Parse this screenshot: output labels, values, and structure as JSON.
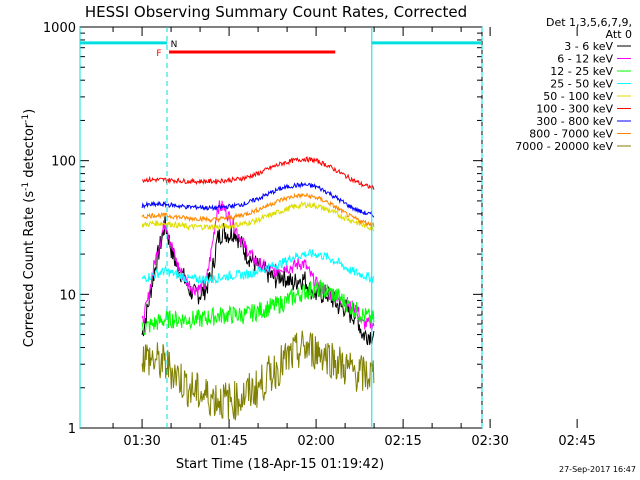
{
  "chart_data": {
    "type": "line",
    "title": "HESSI Observing Summary Count Rates, Corrected",
    "xlabel": "Start Time (18-Apr-15 01:19:42)",
    "ylabel_parts": [
      "Corrected Count Rate (s",
      "-1",
      " detector",
      "-1",
      ")"
    ],
    "yscale": "log",
    "ylim": [
      1,
      1000
    ],
    "yticks": [
      "1",
      "10",
      "100",
      "1000"
    ],
    "xlim_minutes_after_0130": [
      -10.7,
      58.6
    ],
    "xticks": [
      "01:30",
      "01:45",
      "02:00",
      "02:15",
      "02:30",
      "02:45"
    ],
    "legend_header": [
      "Det 1,3,5,6,7,9,",
      "Att 0"
    ],
    "timestamp": "27-Sep-2017 16:47",
    "flags": {
      "N_label": "N",
      "F_label": "F",
      "night_intervals": [
        [
          -10.7,
          4.3
        ],
        [
          39.6,
          58.6
        ]
      ],
      "flare_interval": [
        4.3,
        33.3
      ],
      "flare_level": 650,
      "night_level": 760
    },
    "series": [
      {
        "name": "3 - 6 keV",
        "color": "#000000",
        "points": [
          [
            0,
            5
          ],
          [
            1,
            8
          ],
          [
            2,
            14
          ],
          [
            3,
            22
          ],
          [
            4,
            34
          ],
          [
            5,
            22
          ],
          [
            6,
            16
          ],
          [
            7,
            14
          ],
          [
            8,
            11
          ],
          [
            9,
            10
          ],
          [
            10,
            10
          ],
          [
            11,
            11
          ],
          [
            12,
            14
          ],
          [
            13,
            26
          ],
          [
            14,
            30
          ],
          [
            15,
            28
          ],
          [
            16,
            30
          ],
          [
            17,
            24
          ],
          [
            18,
            20
          ],
          [
            19,
            18
          ],
          [
            20,
            16
          ],
          [
            21,
            15
          ],
          [
            22,
            14
          ],
          [
            23,
            13
          ],
          [
            24,
            14
          ],
          [
            25,
            13
          ],
          [
            26,
            12
          ],
          [
            27,
            13
          ],
          [
            28,
            13
          ],
          [
            29,
            11
          ],
          [
            30,
            10
          ],
          [
            31,
            10
          ],
          [
            32,
            10
          ],
          [
            33,
            9
          ],
          [
            34,
            8
          ],
          [
            35,
            8
          ],
          [
            36,
            7
          ],
          [
            37,
            7
          ],
          [
            38,
            5
          ],
          [
            39,
            5
          ],
          [
            40,
            5
          ]
        ]
      },
      {
        "name": "6 - 12 keV",
        "color": "#ff00ff",
        "points": [
          [
            0,
            6
          ],
          [
            1,
            9
          ],
          [
            2,
            16
          ],
          [
            3,
            24
          ],
          [
            4,
            36
          ],
          [
            5,
            24
          ],
          [
            6,
            17
          ],
          [
            7,
            14
          ],
          [
            8,
            12
          ],
          [
            9,
            11
          ],
          [
            10,
            11
          ],
          [
            11,
            12
          ],
          [
            12,
            22
          ],
          [
            13,
            45
          ],
          [
            14,
            45
          ],
          [
            15,
            38
          ],
          [
            16,
            32
          ],
          [
            17,
            26
          ],
          [
            18,
            22
          ],
          [
            19,
            19
          ],
          [
            20,
            17
          ],
          [
            21,
            16
          ],
          [
            22,
            15
          ],
          [
            23,
            15
          ],
          [
            24,
            16
          ],
          [
            25,
            16
          ],
          [
            26,
            16
          ],
          [
            27,
            17
          ],
          [
            28,
            17
          ],
          [
            29,
            14
          ],
          [
            30,
            12
          ],
          [
            31,
            11
          ],
          [
            32,
            10
          ],
          [
            33,
            10
          ],
          [
            34,
            9
          ],
          [
            35,
            9
          ],
          [
            36,
            8
          ],
          [
            37,
            8
          ],
          [
            38,
            6
          ],
          [
            39,
            6
          ],
          [
            40,
            6
          ]
        ]
      },
      {
        "name": "12 - 25 keV",
        "color": "#00ff00",
        "points": [
          [
            0,
            5.5
          ],
          [
            2,
            6
          ],
          [
            4,
            6.5
          ],
          [
            6,
            6.5
          ],
          [
            8,
            6.5
          ],
          [
            10,
            6.5
          ],
          [
            12,
            6.8
          ],
          [
            14,
            7
          ],
          [
            16,
            7
          ],
          [
            18,
            7
          ],
          [
            20,
            7.5
          ],
          [
            22,
            8
          ],
          [
            24,
            8.5
          ],
          [
            26,
            9.5
          ],
          [
            28,
            10.5
          ],
          [
            30,
            11
          ],
          [
            32,
            10.5
          ],
          [
            34,
            9.5
          ],
          [
            36,
            8
          ],
          [
            38,
            7
          ],
          [
            40,
            6.5
          ]
        ]
      },
      {
        "name": "25 - 50 keV",
        "color": "#00ffff",
        "points": [
          [
            0,
            13
          ],
          [
            2,
            14
          ],
          [
            4,
            15
          ],
          [
            6,
            14
          ],
          [
            8,
            13
          ],
          [
            10,
            13
          ],
          [
            12,
            13
          ],
          [
            14,
            13.5
          ],
          [
            16,
            14
          ],
          [
            18,
            14
          ],
          [
            20,
            15
          ],
          [
            22,
            16
          ],
          [
            24,
            17
          ],
          [
            26,
            19
          ],
          [
            28,
            20
          ],
          [
            30,
            20
          ],
          [
            32,
            19
          ],
          [
            34,
            17
          ],
          [
            36,
            15
          ],
          [
            38,
            14
          ],
          [
            40,
            13
          ]
        ]
      },
      {
        "name": "50 - 100 keV",
        "color": "#dddd00",
        "points": [
          [
            0,
            33
          ],
          [
            2,
            34
          ],
          [
            4,
            34
          ],
          [
            6,
            33
          ],
          [
            8,
            32
          ],
          [
            10,
            32
          ],
          [
            12,
            32
          ],
          [
            14,
            32
          ],
          [
            16,
            33
          ],
          [
            18,
            34
          ],
          [
            20,
            36
          ],
          [
            22,
            39
          ],
          [
            24,
            42
          ],
          [
            26,
            45
          ],
          [
            28,
            47
          ],
          [
            30,
            46
          ],
          [
            32,
            43
          ],
          [
            34,
            39
          ],
          [
            36,
            36
          ],
          [
            38,
            33
          ],
          [
            40,
            31
          ]
        ]
      },
      {
        "name": "100 - 300 keV",
        "color": "#ff0000",
        "points": [
          [
            0,
            72
          ],
          [
            2,
            72
          ],
          [
            4,
            72
          ],
          [
            6,
            71
          ],
          [
            8,
            70
          ],
          [
            10,
            70
          ],
          [
            12,
            70
          ],
          [
            14,
            71
          ],
          [
            16,
            72
          ],
          [
            18,
            75
          ],
          [
            20,
            80
          ],
          [
            22,
            88
          ],
          [
            24,
            95
          ],
          [
            26,
            100
          ],
          [
            28,
            103
          ],
          [
            30,
            100
          ],
          [
            32,
            92
          ],
          [
            34,
            82
          ],
          [
            36,
            73
          ],
          [
            38,
            66
          ],
          [
            40,
            62
          ]
        ]
      },
      {
        "name": "300 - 800 keV",
        "color": "#0000ff",
        "points": [
          [
            0,
            46
          ],
          [
            2,
            47
          ],
          [
            4,
            47
          ],
          [
            6,
            46
          ],
          [
            8,
            45
          ],
          [
            10,
            45
          ],
          [
            12,
            44
          ],
          [
            14,
            45
          ],
          [
            16,
            46
          ],
          [
            18,
            48
          ],
          [
            20,
            52
          ],
          [
            22,
            57
          ],
          [
            24,
            62
          ],
          [
            26,
            65
          ],
          [
            28,
            66
          ],
          [
            30,
            64
          ],
          [
            32,
            58
          ],
          [
            34,
            51
          ],
          [
            36,
            45
          ],
          [
            38,
            41
          ],
          [
            40,
            39
          ]
        ]
      },
      {
        "name": "800 - 7000 keV",
        "color": "#ff8800",
        "points": [
          [
            0,
            38
          ],
          [
            2,
            39
          ],
          [
            4,
            39
          ],
          [
            6,
            38
          ],
          [
            8,
            37
          ],
          [
            10,
            37
          ],
          [
            12,
            36
          ],
          [
            14,
            37
          ],
          [
            16,
            38
          ],
          [
            18,
            40
          ],
          [
            20,
            43
          ],
          [
            22,
            47
          ],
          [
            24,
            51
          ],
          [
            26,
            54
          ],
          [
            28,
            55
          ],
          [
            30,
            53
          ],
          [
            32,
            49
          ],
          [
            34,
            43
          ],
          [
            36,
            38
          ],
          [
            38,
            35
          ],
          [
            40,
            33
          ]
        ]
      },
      {
        "name": "7000 - 20000 keV",
        "color": "#808000",
        "points": [
          [
            0,
            3.5
          ],
          [
            2,
            3.2
          ],
          [
            4,
            3
          ],
          [
            6,
            2.5
          ],
          [
            8,
            2
          ],
          [
            10,
            1.8
          ],
          [
            12,
            1.7
          ],
          [
            14,
            1.6
          ],
          [
            16,
            1.6
          ],
          [
            18,
            1.8
          ],
          [
            20,
            2
          ],
          [
            22,
            2.5
          ],
          [
            24,
            3
          ],
          [
            26,
            3.5
          ],
          [
            28,
            4
          ],
          [
            30,
            3.8
          ],
          [
            32,
            3.5
          ],
          [
            34,
            3
          ],
          [
            36,
            2.7
          ],
          [
            38,
            2.5
          ],
          [
            40,
            2.5
          ]
        ]
      }
    ]
  }
}
